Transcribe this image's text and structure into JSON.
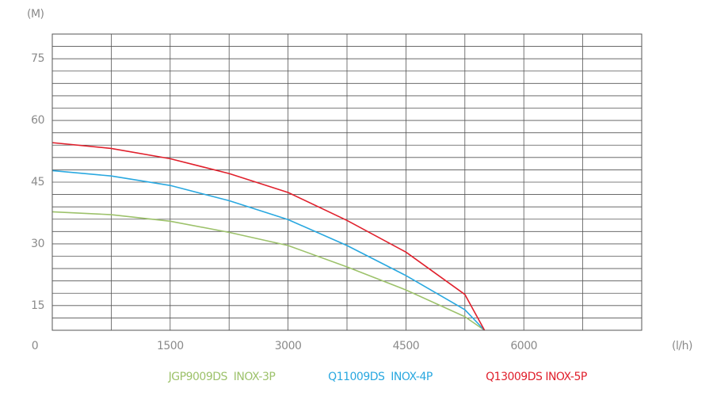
{
  "chart_data": {
    "type": "line",
    "y_unit": "(M)",
    "x_unit": "(l/h)",
    "x": [
      0,
      750,
      1500,
      2250,
      3000,
      3750,
      4500,
      5250,
      5500
    ],
    "series": [
      {
        "name": "JGP9009DS  INOX-3P",
        "color": "#9dc26b",
        "values": [
          37.8,
          37.1,
          35.5,
          32.8,
          29.6,
          24.4,
          18.8,
          12.3,
          9
        ]
      },
      {
        "name": "Q11009DS  INOX-4P",
        "color": "#29a8e0",
        "values": [
          47.8,
          46.5,
          44.2,
          40.5,
          35.9,
          29.6,
          22.3,
          14,
          9
        ]
      },
      {
        "name": "Q13009DS INOX-5P",
        "color": "#e0202c",
        "values": [
          54.6,
          53.2,
          50.7,
          47.1,
          42.5,
          35.7,
          28,
          17.7,
          9
        ]
      }
    ],
    "xlim": [
      0,
      7500
    ],
    "ylim": [
      9,
      81
    ],
    "xticks": [
      0,
      1500,
      3000,
      4500,
      6000
    ],
    "yticks": [
      15,
      30,
      45,
      60,
      75
    ],
    "x_grid": [
      0,
      750,
      1500,
      2250,
      3000,
      3750,
      4500,
      5250,
      6000,
      6750,
      7500
    ],
    "y_grid": [
      9,
      12,
      15,
      18,
      21,
      24,
      27,
      30,
      33,
      36,
      39,
      42,
      45,
      48,
      51,
      54,
      57,
      60,
      63,
      66,
      69,
      72,
      75,
      78,
      81
    ],
    "legend": "bottom"
  }
}
